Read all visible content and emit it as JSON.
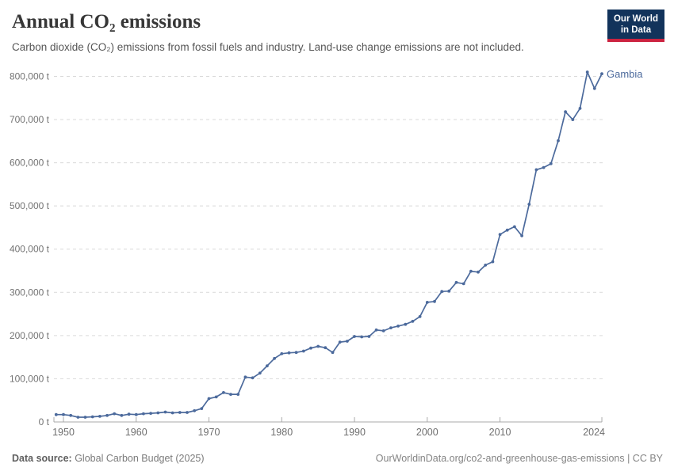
{
  "header": {
    "title": "Annual CO₂ emissions",
    "subtitle": "Carbon dioxide (CO₂) emissions from fossil fuels and industry. Land-use change emissions are not included.",
    "logo": {
      "line1": "Our World",
      "line2": "in Data",
      "bg_color": "#12335b",
      "stripe_color": "#cc2340"
    }
  },
  "chart_data": {
    "type": "line",
    "title": "Annual CO₂ emissions",
    "entity": "Gambia",
    "unit": "t",
    "grid": "dashed horizontal gridlines",
    "legend_position": "line-end label",
    "line_color": "#4c6a9c",
    "xlim": [
      1948.5,
      2024
    ],
    "ylim": [
      0,
      820000
    ],
    "yticks": [
      0,
      100000,
      200000,
      300000,
      400000,
      500000,
      600000,
      700000,
      800000
    ],
    "ytick_labels": [
      "0 t",
      "100,000 t",
      "200,000 t",
      "300,000 t",
      "400,000 t",
      "500,000 t",
      "600,000 t",
      "700,000 t",
      "800,000 t"
    ],
    "xticks": [
      1950,
      1960,
      1970,
      1980,
      1990,
      2000,
      2010,
      2024
    ],
    "xtick_labels": [
      "1950",
      "1960",
      "1970",
      "1980",
      "1990",
      "2000",
      "2010",
      "2024"
    ],
    "series": [
      {
        "name": "Gambia",
        "x": [
          1949,
          1950,
          1951,
          1952,
          1953,
          1954,
          1955,
          1956,
          1957,
          1958,
          1959,
          1960,
          1961,
          1962,
          1963,
          1964,
          1965,
          1966,
          1967,
          1968,
          1969,
          1970,
          1971,
          1972,
          1973,
          1974,
          1975,
          1976,
          1977,
          1978,
          1979,
          1980,
          1981,
          1982,
          1983,
          1984,
          1985,
          1986,
          1987,
          1988,
          1989,
          1990,
          1991,
          1992,
          1993,
          1994,
          1995,
          1996,
          1997,
          1998,
          1999,
          2000,
          2001,
          2002,
          2003,
          2004,
          2005,
          2006,
          2007,
          2008,
          2009,
          2010,
          2011,
          2012,
          2013,
          2014,
          2015,
          2016,
          2017,
          2018,
          2019,
          2020,
          2021,
          2022,
          2023,
          2024
        ],
        "values": [
          17000,
          17000,
          15000,
          11000,
          11000,
          12000,
          13000,
          15000,
          19000,
          15000,
          18000,
          17000,
          19000,
          20000,
          21000,
          23000,
          21000,
          22000,
          22000,
          26000,
          31000,
          54000,
          58000,
          68000,
          64000,
          64000,
          104000,
          102000,
          113000,
          130000,
          147000,
          158000,
          160000,
          161000,
          164000,
          171000,
          175000,
          172000,
          161000,
          185000,
          187000,
          198000,
          197000,
          198000,
          213000,
          211000,
          218000,
          222000,
          226000,
          233000,
          244000,
          277000,
          279000,
          302000,
          303000,
          323000,
          320000,
          349000,
          347000,
          363000,
          371000,
          434000,
          444000,
          452000,
          431000,
          504000,
          584000,
          589000,
          598000,
          651000,
          718000,
          700000,
          726000,
          810000,
          772000,
          806000
        ]
      }
    ]
  },
  "footer": {
    "source_label": "Data source:",
    "source_value": " Global Carbon Budget (2025)",
    "link": "OurWorldinData.org/co2-and-greenhouse-gas-emissions | CC BY"
  }
}
